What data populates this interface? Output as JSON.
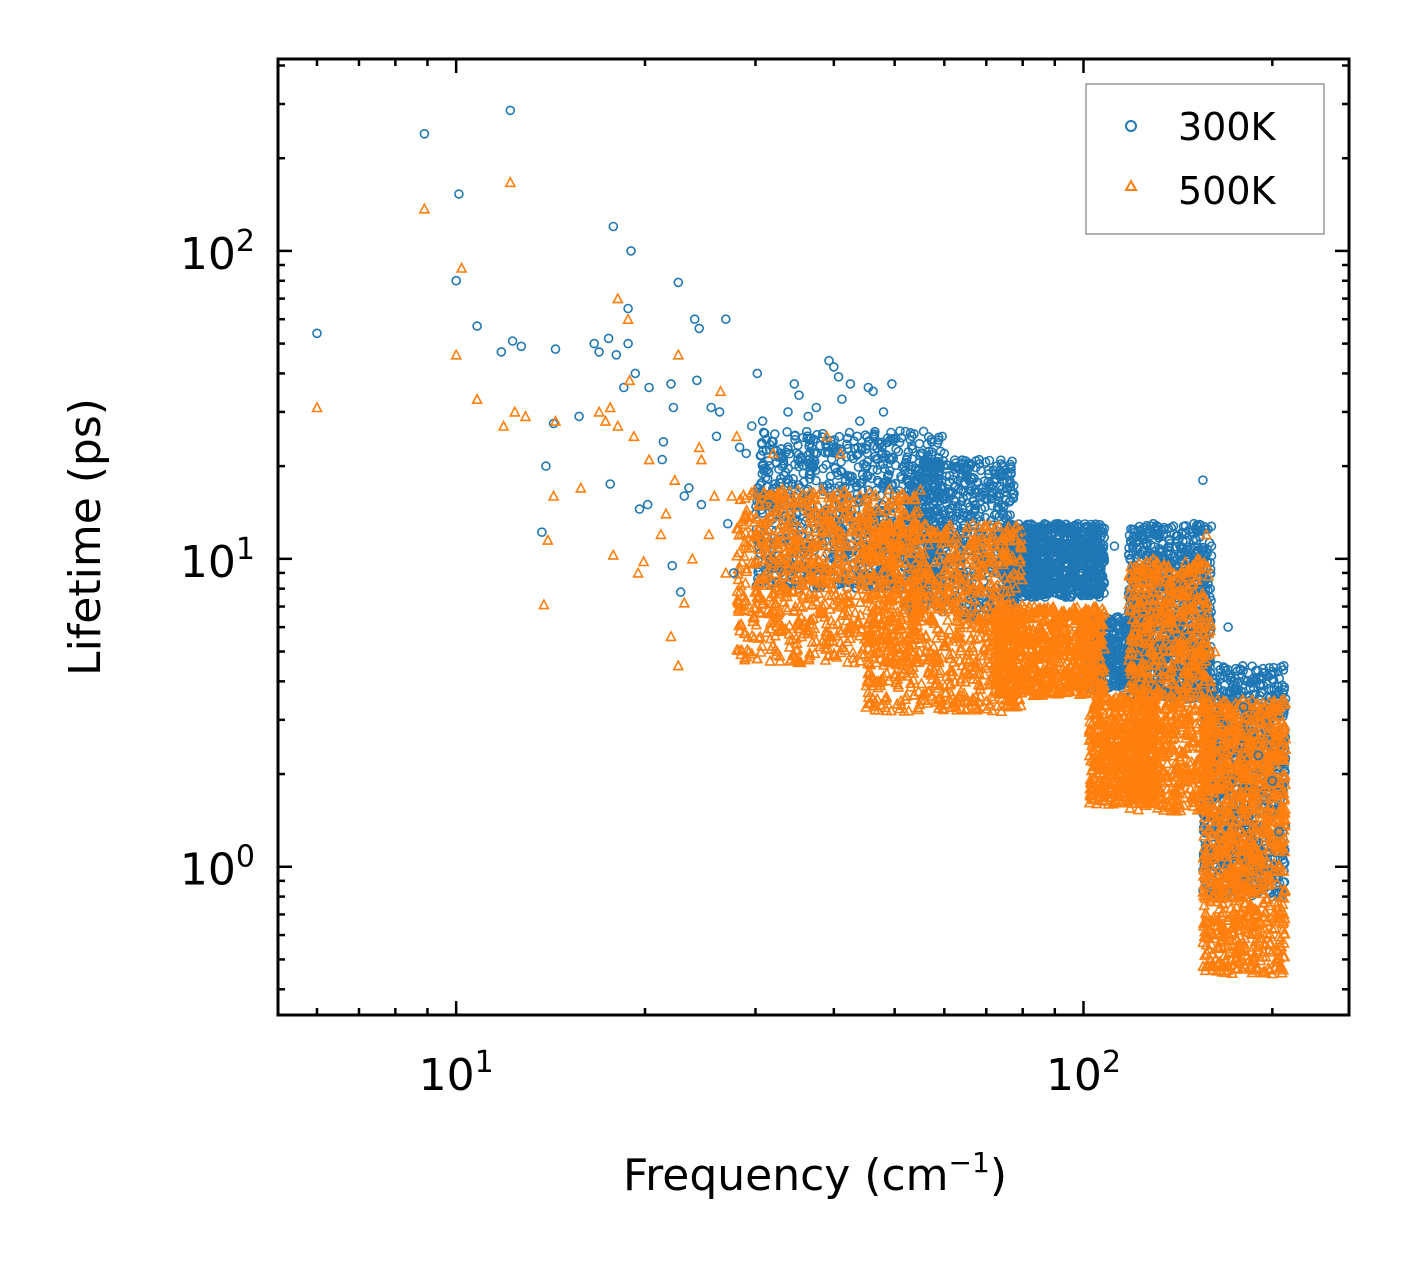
{
  "chart_data": {
    "type": "scatter",
    "title": "",
    "xlabel": "Frequency (cm",
    "xlabel_sup": "−1",
    "xlabel_close": ")",
    "ylabel": "Lifetime (ps)",
    "xscale": "log",
    "yscale": "log",
    "xlim": [
      5.2,
      265
    ],
    "ylim": [
      0.33,
      420
    ],
    "x_ticks": [
      {
        "value": 10,
        "base": "10",
        "exp": "1"
      },
      {
        "value": 100,
        "base": "10",
        "exp": "2"
      }
    ],
    "y_ticks": [
      {
        "value": 1,
        "base": "10",
        "exp": "0"
      },
      {
        "value": 10,
        "base": "10",
        "exp": "1"
      },
      {
        "value": 100,
        "base": "10",
        "exp": "2"
      }
    ],
    "legend_position": "top-right",
    "series": [
      {
        "name": "300K",
        "marker": "circle",
        "color": "#1f77b4",
        "points": [
          [
            6.0,
            54
          ],
          [
            8.9,
            240
          ],
          [
            10.1,
            153
          ],
          [
            10.0,
            80
          ],
          [
            10.8,
            57
          ],
          [
            11.8,
            47
          ],
          [
            12.2,
            286
          ],
          [
            12.3,
            51
          ],
          [
            12.7,
            49
          ],
          [
            13.7,
            12.2
          ],
          [
            13.9,
            20
          ],
          [
            14.3,
            27.5
          ],
          [
            14.4,
            48
          ],
          [
            15.7,
            29
          ],
          [
            16.6,
            50
          ],
          [
            16.9,
            47
          ],
          [
            17.5,
            52
          ],
          [
            17.6,
            17.5
          ],
          [
            17.8,
            120
          ],
          [
            18.0,
            46
          ],
          [
            18.5,
            36
          ],
          [
            18.8,
            65
          ],
          [
            18.8,
            50
          ],
          [
            19.0,
            100
          ],
          [
            19.3,
            40
          ],
          [
            19.6,
            14.5
          ],
          [
            20.2,
            15
          ],
          [
            20.3,
            36
          ],
          [
            21.4,
            24
          ],
          [
            21.3,
            21
          ],
          [
            22.0,
            37
          ],
          [
            22.2,
            31
          ],
          [
            22.6,
            79
          ],
          [
            22.8,
            7.8
          ],
          [
            22.1,
            9.5
          ],
          [
            23.1,
            16
          ],
          [
            23.5,
            17
          ],
          [
            24.0,
            60
          ],
          [
            24.4,
            56
          ],
          [
            24.2,
            38
          ],
          [
            24.6,
            15
          ],
          [
            25.5,
            31
          ],
          [
            26.0,
            25
          ],
          [
            26.3,
            30
          ],
          [
            26.9,
            60
          ],
          [
            27.1,
            13
          ],
          [
            27.7,
            9
          ],
          [
            28.3,
            23
          ],
          [
            29.0,
            22
          ],
          [
            29.6,
            27
          ],
          [
            30.2,
            40
          ],
          [
            30.8,
            28
          ],
          [
            31.5,
            15
          ],
          [
            32.0,
            24
          ],
          [
            33.1,
            20
          ],
          [
            33.8,
            30
          ],
          [
            34.6,
            37
          ],
          [
            35.2,
            34
          ],
          [
            36.4,
            29
          ],
          [
            37.5,
            31
          ],
          [
            39.3,
            44
          ],
          [
            40.0,
            42
          ],
          [
            40.7,
            39
          ],
          [
            41.2,
            33
          ],
          [
            42.5,
            37
          ],
          [
            44.0,
            28
          ],
          [
            45.4,
            36
          ],
          [
            46.2,
            35
          ],
          [
            48.0,
            30
          ],
          [
            49.5,
            37
          ],
          [
            51.0,
            26
          ],
          [
            55.0,
            22
          ],
          [
            60.0,
            22
          ],
          [
            63.0,
            20
          ],
          [
            66.0,
            20
          ],
          [
            70.0,
            17
          ],
          [
            74.0,
            15
          ],
          [
            80.0,
            12
          ],
          [
            88.0,
            12.5
          ],
          [
            95.0,
            11
          ],
          [
            103.0,
            10
          ],
          [
            112.0,
            11
          ],
          [
            120.0,
            10.5
          ],
          [
            132.0,
            12
          ],
          [
            150.0,
            13
          ],
          [
            155.0,
            18
          ],
          [
            160.0,
            11
          ],
          [
            170.0,
            6
          ],
          [
            180.0,
            3.3
          ],
          [
            190.0,
            2.3
          ],
          [
            200.0,
            1.9
          ],
          [
            205.0,
            1.3
          ]
        ]
      },
      {
        "name": "500K",
        "marker": "triangle",
        "color": "#ff7f0e",
        "points": [
          [
            6.0,
            31
          ],
          [
            8.9,
            137
          ],
          [
            10.0,
            46
          ],
          [
            10.2,
            88
          ],
          [
            10.8,
            33
          ],
          [
            11.9,
            27
          ],
          [
            12.2,
            167
          ],
          [
            12.4,
            30
          ],
          [
            12.9,
            29
          ],
          [
            13.8,
            7.1
          ],
          [
            14.0,
            11.5
          ],
          [
            14.3,
            16
          ],
          [
            14.4,
            28
          ],
          [
            15.8,
            17
          ],
          [
            16.9,
            30
          ],
          [
            17.3,
            28
          ],
          [
            17.6,
            31
          ],
          [
            17.8,
            10.3
          ],
          [
            18.1,
            27
          ],
          [
            18.1,
            70
          ],
          [
            18.8,
            60
          ],
          [
            18.9,
            38
          ],
          [
            19.2,
            25
          ],
          [
            19.5,
            9
          ],
          [
            19.9,
            9.8
          ],
          [
            20.3,
            21
          ],
          [
            21.2,
            12
          ],
          [
            21.6,
            14
          ],
          [
            22.0,
            5.6
          ],
          [
            22.3,
            18
          ],
          [
            22.6,
            4.5
          ],
          [
            22.6,
            46
          ],
          [
            23.1,
            7.2
          ],
          [
            23.8,
            10
          ],
          [
            24.4,
            23
          ],
          [
            24.6,
            21
          ],
          [
            25.3,
            12
          ],
          [
            25.8,
            16
          ],
          [
            26.4,
            35
          ],
          [
            26.9,
            9
          ],
          [
            27.5,
            16
          ],
          [
            28.0,
            25
          ],
          [
            28.5,
            6.8
          ],
          [
            29.3,
            5
          ],
          [
            30.3,
            7.5
          ],
          [
            31.0,
            15
          ],
          [
            32.0,
            22
          ],
          [
            33.8,
            13
          ],
          [
            35.0,
            9
          ],
          [
            37.0,
            15
          ],
          [
            39.0,
            25
          ],
          [
            41.0,
            22
          ],
          [
            42.3,
            6
          ],
          [
            44.0,
            11
          ],
          [
            46.0,
            13
          ],
          [
            50.0,
            15
          ],
          [
            52.0,
            3.5
          ],
          [
            56.0,
            6.5
          ],
          [
            60.0,
            9
          ],
          [
            65.0,
            8
          ],
          [
            70.0,
            6
          ],
          [
            74.0,
            3.2
          ],
          [
            80.0,
            6.5
          ],
          [
            90.0,
            6
          ],
          [
            100.0,
            5.5
          ],
          [
            105.0,
            3.6
          ],
          [
            110.0,
            2.5
          ],
          [
            118.0,
            1.8
          ],
          [
            125.0,
            4.5
          ],
          [
            135.0,
            3
          ],
          [
            145.0,
            7
          ],
          [
            152.0,
            10
          ],
          [
            157.0,
            12
          ],
          [
            162.0,
            5
          ],
          [
            170.0,
            2.2
          ],
          [
            178.0,
            1.2
          ],
          [
            188.0,
            0.7
          ],
          [
            195.0,
            0.9
          ],
          [
            203.0,
            0.5
          ],
          [
            207.0,
            0.55
          ]
        ]
      }
    ],
    "bands": [
      {
        "series": "300K",
        "regions": [
          {
            "x": [
              30,
              60
            ],
            "y": [
              8,
              26
            ],
            "n": 900
          },
          {
            "x": [
              52,
              78
            ],
            "y": [
              6.5,
              21
            ],
            "n": 700
          },
          {
            "x": [
              75,
              108
            ],
            "y": [
              7.5,
              13
            ],
            "n": 1000
          },
          {
            "x": [
              100,
              125
            ],
            "y": [
              3.8,
              6.5
            ],
            "n": 450
          },
          {
            "x": [
              118,
              160
            ],
            "y": [
              3.5,
              13
            ],
            "n": 900
          },
          {
            "x": [
              155,
              210
            ],
            "y": [
              0.8,
              4.5
            ],
            "n": 900
          }
        ]
      },
      {
        "series": "500K",
        "regions": [
          {
            "x": [
              28,
              55
            ],
            "y": [
              4.6,
              17
            ],
            "n": 900
          },
          {
            "x": [
              45,
              80
            ],
            "y": [
              3.2,
              13
            ],
            "n": 900
          },
          {
            "x": [
              72,
              108
            ],
            "y": [
              3.6,
              7
            ],
            "n": 800
          },
          {
            "x": [
              102,
              130
            ],
            "y": [
              1.6,
              3.6
            ],
            "n": 600
          },
          {
            "x": [
              118,
              160
            ],
            "y": [
              1.5,
              10
            ],
            "n": 900
          },
          {
            "x": [
              155,
              210
            ],
            "y": [
              0.45,
              3.5
            ],
            "n": 1100
          }
        ]
      }
    ]
  }
}
